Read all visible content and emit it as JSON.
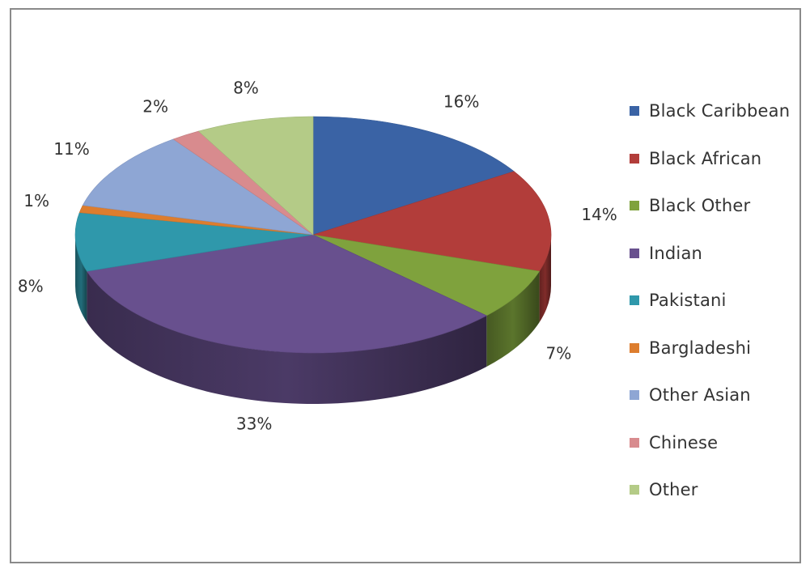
{
  "chart_data": {
    "type": "pie",
    "style": "3d",
    "categories": [
      "Black Caribbean",
      "Black African",
      "Black Other",
      "Indian",
      "Pakistani",
      "Bargladeshi",
      "Other Asian",
      "Chinese",
      "Other"
    ],
    "values": [
      16,
      14,
      7,
      33,
      8,
      1,
      11,
      2,
      8
    ],
    "value_labels": [
      "16%",
      "14%",
      "7%",
      "33%",
      "8%",
      "1%",
      "11%",
      "2%",
      "8%"
    ],
    "colors": [
      "#3a63a5",
      "#b23d3a",
      "#7fa23d",
      "#68508e",
      "#2f98ab",
      "#dd7d2e",
      "#8ea6d4",
      "#d88b8e",
      "#b4cb87"
    ],
    "title": "",
    "legend_position": "right"
  }
}
